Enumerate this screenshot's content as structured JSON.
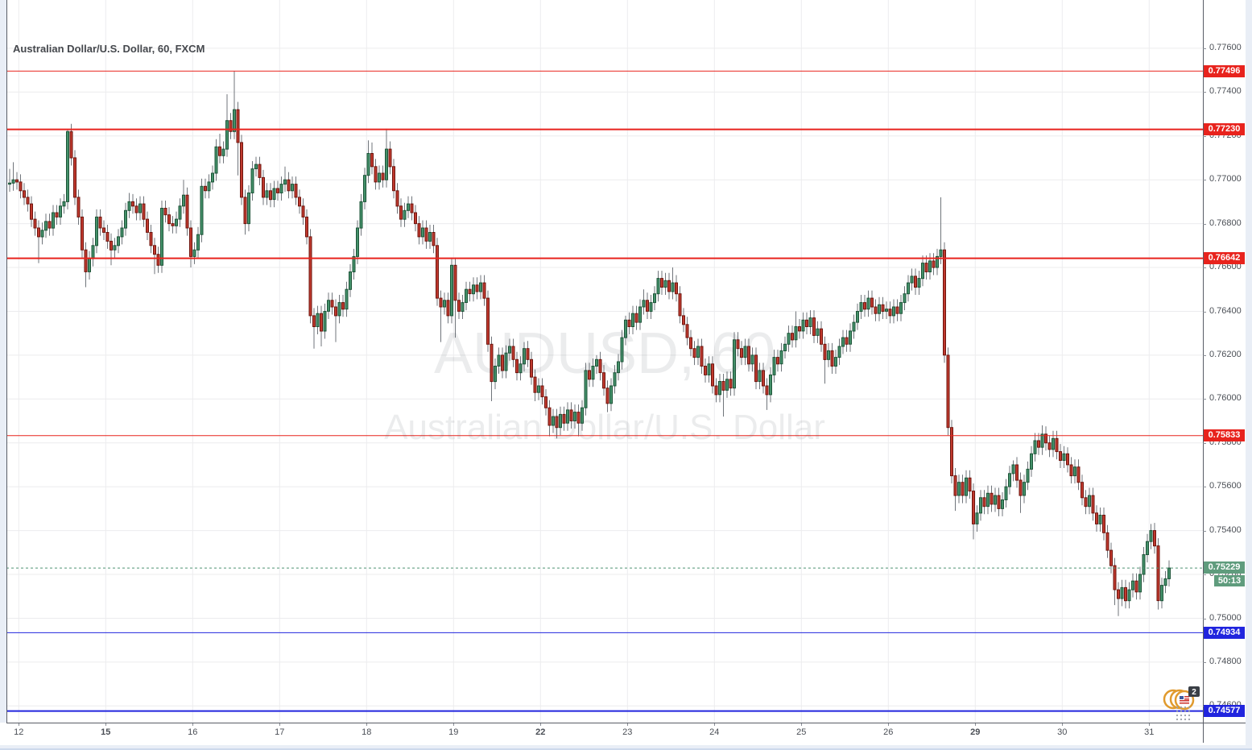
{
  "header": {
    "title": "Australian Dollar/U.S. Dollar, 60, FXCM"
  },
  "watermark": {
    "line1": "AUDUSD, 60",
    "line2": "Australian Dollar/U.S. Dollar"
  },
  "badge": {
    "count": "2"
  },
  "colors": {
    "up_fill": "#44916a",
    "up_border": "#1d5438",
    "down_fill": "#c0392e",
    "down_border": "#6e150e",
    "wick": "#70757b",
    "grid": "#ececee",
    "red_line": "#e8231d",
    "blue_line": "#2125de",
    "current_green": "#5f9c7d",
    "current_dash": "#4f9473",
    "axis_text": "#4b4f56",
    "frame": "#595d66",
    "page_bg": "#e9eef6"
  },
  "chart_data": {
    "type": "candlestick",
    "title": "Australian Dollar/U.S. Dollar, 60, FXCM",
    "symbol": "AUDUSD",
    "interval_minutes": 60,
    "exchange": "FXCM",
    "legend_position": "top-left",
    "grid": true,
    "y_axis": {
      "price_at_top": 0.7782,
      "price_at_bottom": 0.74524,
      "tick_step": 0.002,
      "tick_min": 0.746,
      "tick_max": 0.776,
      "decimals": 5,
      "visible_ticks": [
        "0.77600",
        "0.77400",
        "0.77200",
        "0.77000",
        "0.76800",
        "0.76600",
        "0.76400",
        "0.76200",
        "0.76000",
        "0.75800",
        "0.75600",
        "0.75400",
        "0.75200",
        "0.75000",
        "0.74800",
        "0.74600"
      ]
    },
    "x_axis": {
      "labels": [
        {
          "text": "12",
          "bar": 3,
          "bold": false
        },
        {
          "text": "15",
          "bar": 27,
          "bold": true
        },
        {
          "text": "16",
          "bar": 51,
          "bold": false
        },
        {
          "text": "17",
          "bar": 75,
          "bold": false
        },
        {
          "text": "18",
          "bar": 99,
          "bold": false
        },
        {
          "text": "19",
          "bar": 123,
          "bold": false
        },
        {
          "text": "22",
          "bar": 147,
          "bold": true
        },
        {
          "text": "23",
          "bar": 171,
          "bold": false
        },
        {
          "text": "24",
          "bar": 195,
          "bold": false
        },
        {
          "text": "25",
          "bar": 219,
          "bold": false
        },
        {
          "text": "26",
          "bar": 243,
          "bold": false
        },
        {
          "text": "29",
          "bar": 267,
          "bold": true
        },
        {
          "text": "30",
          "bar": 291,
          "bold": false
        },
        {
          "text": "31",
          "bar": 315,
          "bold": false
        }
      ]
    },
    "price_lines": [
      {
        "price": 0.77496,
        "label": "0.77496",
        "color": "red",
        "weight": 1
      },
      {
        "price": 0.7723,
        "label": "0.77230",
        "color": "red",
        "weight": 2
      },
      {
        "price": 0.76642,
        "label": "0.76642",
        "color": "red",
        "weight": 2
      },
      {
        "price": 0.75833,
        "label": "0.75833",
        "color": "red",
        "weight": 1
      },
      {
        "price": 0.74934,
        "label": "0.74934",
        "color": "blue",
        "weight": 1
      },
      {
        "price": 0.74577,
        "label": "0.74577",
        "color": "blue",
        "weight": 2
      }
    ],
    "current_price": {
      "value": 0.75229,
      "label": "0.75229",
      "countdown": "50:13",
      "direction": "up"
    },
    "candles": {
      "first_open": 0.7698,
      "default_wick": 0.00035,
      "closes": [
        0.76985,
        0.77,
        0.7699,
        0.7695,
        0.7692,
        0.7689,
        0.7682,
        0.7678,
        0.7674,
        0.7677,
        0.7681,
        0.7678,
        0.7685,
        0.7683,
        0.7688,
        0.769,
        0.7722,
        0.771,
        0.7692,
        0.7683,
        0.7668,
        0.7658,
        0.7664,
        0.767,
        0.7683,
        0.7678,
        0.7676,
        0.7672,
        0.7668,
        0.767,
        0.7674,
        0.7678,
        0.7686,
        0.769,
        0.7688,
        0.7685,
        0.7689,
        0.7682,
        0.7676,
        0.767,
        0.7666,
        0.7661,
        0.7687,
        0.7684,
        0.768,
        0.7679,
        0.7682,
        0.7688,
        0.7693,
        0.7678,
        0.7665,
        0.7668,
        0.7675,
        0.7697,
        0.7695,
        0.7699,
        0.7703,
        0.7715,
        0.7711,
        0.7714,
        0.7727,
        0.7722,
        0.7732,
        0.7717,
        0.7692,
        0.768,
        0.7694,
        0.7705,
        0.7707,
        0.7701,
        0.7692,
        0.7695,
        0.7691,
        0.7696,
        0.7694,
        0.7698,
        0.77,
        0.7695,
        0.7698,
        0.7692,
        0.7688,
        0.7683,
        0.7674,
        0.7638,
        0.7633,
        0.7639,
        0.7631,
        0.764,
        0.7645,
        0.7642,
        0.7638,
        0.7644,
        0.7641,
        0.765,
        0.7658,
        0.7665,
        0.7678,
        0.769,
        0.7702,
        0.7712,
        0.7706,
        0.7699,
        0.7703,
        0.77,
        0.7714,
        0.7706,
        0.7695,
        0.7688,
        0.7682,
        0.7686,
        0.7689,
        0.7685,
        0.768,
        0.7674,
        0.7678,
        0.7672,
        0.7676,
        0.767,
        0.7646,
        0.7642,
        0.7645,
        0.7638,
        0.7661,
        0.7645,
        0.764,
        0.7644,
        0.765,
        0.7648,
        0.7652,
        0.7649,
        0.7653,
        0.7646,
        0.7625,
        0.7608,
        0.7615,
        0.762,
        0.7613,
        0.7621,
        0.7624,
        0.7618,
        0.7612,
        0.7616,
        0.7623,
        0.7618,
        0.761,
        0.7603,
        0.7606,
        0.7601,
        0.7596,
        0.7588,
        0.7592,
        0.7587,
        0.7593,
        0.7589,
        0.7595,
        0.759,
        0.7594,
        0.7589,
        0.7596,
        0.7613,
        0.7609,
        0.7615,
        0.7618,
        0.7612,
        0.7605,
        0.7598,
        0.7606,
        0.7612,
        0.7617,
        0.7628,
        0.7636,
        0.7633,
        0.7639,
        0.7635,
        0.7642,
        0.7645,
        0.764,
        0.7644,
        0.7648,
        0.7655,
        0.7651,
        0.7654,
        0.7649,
        0.7653,
        0.7648,
        0.7638,
        0.7634,
        0.7628,
        0.7623,
        0.7619,
        0.7624,
        0.7615,
        0.7611,
        0.7616,
        0.7606,
        0.7602,
        0.7608,
        0.7604,
        0.7609,
        0.7605,
        0.7627,
        0.7623,
        0.7619,
        0.7624,
        0.7616,
        0.762,
        0.7608,
        0.7613,
        0.7606,
        0.7602,
        0.7611,
        0.7619,
        0.7616,
        0.7622,
        0.7625,
        0.763,
        0.7627,
        0.7633,
        0.7631,
        0.7636,
        0.7633,
        0.7637,
        0.7629,
        0.7632,
        0.7625,
        0.7618,
        0.7622,
        0.7615,
        0.7619,
        0.7624,
        0.7628,
        0.7625,
        0.7631,
        0.7635,
        0.764,
        0.7644,
        0.7641,
        0.7646,
        0.7642,
        0.7639,
        0.7643,
        0.764,
        0.7641,
        0.7638,
        0.7642,
        0.7639,
        0.7644,
        0.7648,
        0.7653,
        0.7656,
        0.7651,
        0.7655,
        0.7662,
        0.7658,
        0.7663,
        0.766,
        0.7665,
        0.7668,
        0.762,
        0.7587,
        0.7565,
        0.7556,
        0.7562,
        0.7556,
        0.7564,
        0.7558,
        0.7543,
        0.7548,
        0.7555,
        0.7551,
        0.7557,
        0.7552,
        0.7556,
        0.755,
        0.7554,
        0.756,
        0.7566,
        0.757,
        0.7563,
        0.7556,
        0.7562,
        0.7568,
        0.7575,
        0.7581,
        0.7578,
        0.7584,
        0.758,
        0.7577,
        0.7582,
        0.7576,
        0.7572,
        0.7575,
        0.757,
        0.7565,
        0.7569,
        0.7562,
        0.7555,
        0.7551,
        0.7556,
        0.7548,
        0.7543,
        0.7547,
        0.7539,
        0.7531,
        0.7524,
        0.7513,
        0.7509,
        0.7514,
        0.7508,
        0.7513,
        0.7517,
        0.7512,
        0.752,
        0.7529,
        0.7535,
        0.754,
        0.7533,
        0.7508,
        0.7515,
        0.7518,
        0.75229
      ],
      "wick_overrides": {
        "0": [
          null,
          0.7705
        ],
        "1": [
          null,
          0.7708
        ],
        "8": [
          0.7662,
          null
        ],
        "16": [
          null,
          0.77228
        ],
        "21": [
          0.7651,
          null
        ],
        "28": [
          0.7661,
          null
        ],
        "33": [
          null,
          0.7694
        ],
        "40": [
          0.7657,
          null
        ],
        "48": [
          null,
          0.77
        ],
        "50": [
          0.766,
          null
        ],
        "58": [
          null,
          0.7721
        ],
        "60": [
          null,
          0.7739
        ],
        "62": [
          null,
          0.77496
        ],
        "63": [
          0.7702,
          null
        ],
        "65": [
          0.7675,
          null
        ],
        "76": [
          null,
          0.7706
        ],
        "84": [
          0.7623,
          null
        ],
        "86": [
          0.7624,
          null
        ],
        "90": [
          0.7626,
          null
        ],
        "99": [
          null,
          0.7718
        ],
        "100": [
          null,
          0.7717
        ],
        "104": [
          null,
          0.77233
        ],
        "119": [
          0.7626,
          null
        ],
        "123": [
          0.7628,
          null
        ],
        "133": [
          0.7599,
          null
        ],
        "142": [
          null,
          0.7626
        ],
        "145": [
          0.7599,
          null
        ],
        "149": [
          0.7583,
          null
        ],
        "151": [
          0.7582,
          null
        ],
        "157": [
          0.7583,
          null
        ],
        "162": [
          null,
          0.762
        ],
        "165": [
          0.7594,
          null
        ],
        "170": [
          null,
          0.7638
        ],
        "175": [
          null,
          0.765
        ],
        "183": [
          null,
          0.766
        ],
        "197": [
          0.7592,
          null
        ],
        "209": [
          0.7595,
          null
        ],
        "217": [
          null,
          0.764
        ],
        "225": [
          0.7607,
          null
        ],
        "257": [
          null,
          0.7692
        ],
        "261": [
          0.7549,
          null
        ],
        "266": [
          0.7536,
          null
        ],
        "277": [
          null,
          0.7572
        ],
        "279": [
          0.7548,
          null
        ],
        "285": [
          null,
          0.7588
        ],
        "292": [
          null,
          0.7578
        ],
        "305": [
          0.7506,
          null
        ],
        "306": [
          0.7501,
          null
        ],
        "315": [
          null,
          0.7543
        ],
        "317": [
          0.7504,
          null
        ]
      }
    }
  }
}
